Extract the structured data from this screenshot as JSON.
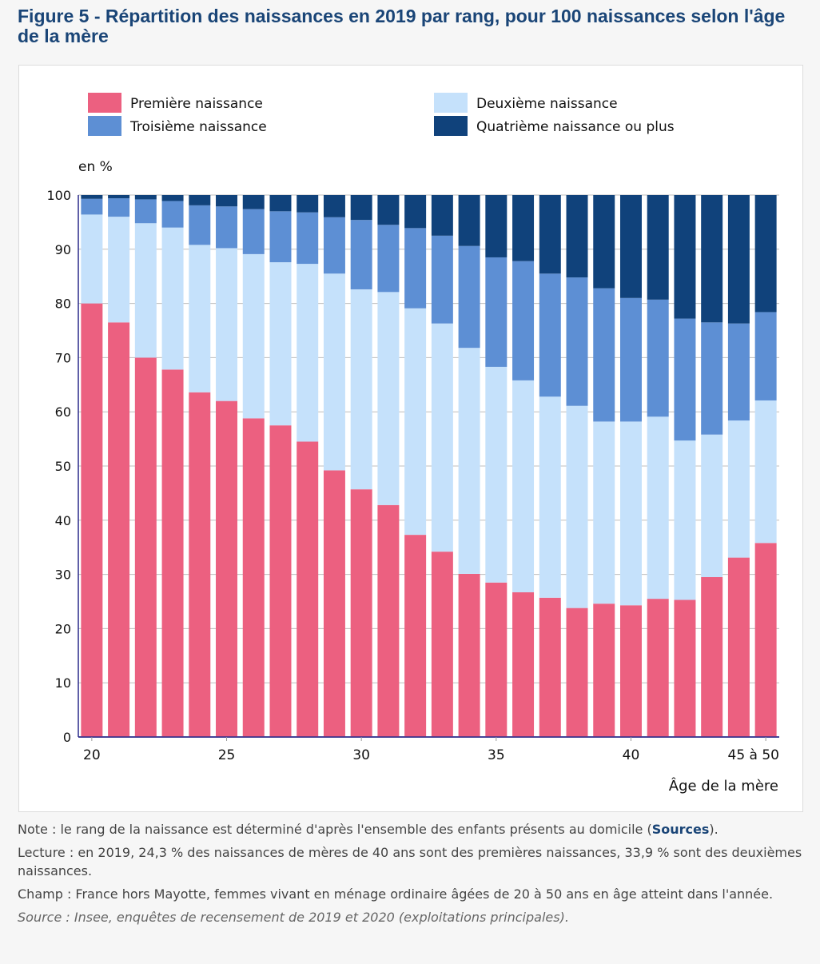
{
  "figure": {
    "title": "Figure 5 - Répartition des naissances en 2019 par rang, pour 100 naissances selon l'âge de la mère"
  },
  "notes": {
    "note_prefix": "Note : le rang de la naissance est déterminé d'après l'ensemble des enfants présents au domicile (",
    "note_link": "Sources",
    "note_suffix": ").",
    "lecture": "Lecture : en 2019, 24,3 % des naissances de mères de 40 ans sont des premières naissances, 33,9 % sont des deuxièmes naissances.",
    "champ": "Champ : France hors Mayotte, femmes vivant en ménage ordinaire âgées de 20 à 50 ans en âge atteint dans l'année.",
    "source": "Source : Insee, enquêtes de recensement de 2019 et 2020 (exploitations principales)."
  },
  "chart_data": {
    "type": "bar",
    "stacked": true,
    "title": "Figure 5 - Répartition des naissances en 2019 par rang, pour 100 naissances selon l'âge de la mère",
    "xlabel": "Âge de la mère",
    "ylabel": "en %",
    "ylim": [
      0,
      100
    ],
    "yticks": [
      0,
      10,
      20,
      30,
      40,
      50,
      60,
      70,
      80,
      90,
      100
    ],
    "grid": true,
    "legend_position": "top",
    "categories": [
      "20",
      "21",
      "22",
      "23",
      "24",
      "25",
      "26",
      "27",
      "28",
      "29",
      "30",
      "31",
      "32",
      "33",
      "34",
      "35",
      "36",
      "37",
      "38",
      "39",
      "40",
      "41",
      "42",
      "43",
      "44",
      "45 à 50"
    ],
    "xtick_labels": [
      {
        "index": 0,
        "label": "20"
      },
      {
        "index": 5,
        "label": "25"
      },
      {
        "index": 10,
        "label": "30"
      },
      {
        "index": 15,
        "label": "35"
      },
      {
        "index": 20,
        "label": "40"
      },
      {
        "index": 25,
        "label": "45 à 50"
      }
    ],
    "series": [
      {
        "name": "Première naissance",
        "color": "#ec6080",
        "values": [
          80.0,
          76.5,
          70.0,
          67.8,
          63.6,
          62.0,
          58.8,
          57.5,
          54.5,
          49.2,
          45.7,
          42.8,
          37.3,
          34.2,
          30.1,
          28.5,
          26.7,
          25.7,
          23.8,
          24.6,
          24.3,
          25.5,
          25.3,
          29.5,
          33.1,
          35.8
        ]
      },
      {
        "name": "Deuxième naissance",
        "color": "#c5e1fb",
        "values": [
          16.4,
          19.5,
          24.8,
          26.2,
          27.2,
          28.2,
          30.3,
          30.1,
          32.8,
          36.3,
          36.9,
          39.3,
          41.8,
          42.1,
          41.7,
          39.8,
          39.1,
          37.1,
          37.3,
          33.6,
          33.9,
          33.6,
          29.4,
          26.3,
          25.3,
          26.3
        ]
      },
      {
        "name": "Troisième naissance",
        "color": "#5d8fd4",
        "values": [
          2.9,
          3.4,
          4.4,
          4.9,
          7.3,
          7.7,
          8.3,
          9.4,
          9.5,
          10.4,
          12.8,
          12.4,
          14.8,
          16.2,
          18.8,
          20.2,
          22.0,
          22.7,
          23.7,
          24.6,
          22.8,
          21.6,
          22.5,
          20.7,
          17.9,
          16.3
        ]
      },
      {
        "name": "Quatrième naissance ou plus",
        "color": "#10427b",
        "values": [
          0.7,
          0.6,
          0.8,
          1.1,
          1.9,
          2.1,
          2.6,
          3.0,
          3.2,
          4.1,
          4.6,
          5.5,
          6.1,
          7.5,
          9.4,
          11.5,
          12.2,
          14.5,
          15.2,
          17.2,
          19.0,
          19.3,
          22.8,
          23.5,
          23.7,
          21.6
        ]
      }
    ],
    "legend_order": [
      0,
      1,
      2,
      3
    ]
  }
}
